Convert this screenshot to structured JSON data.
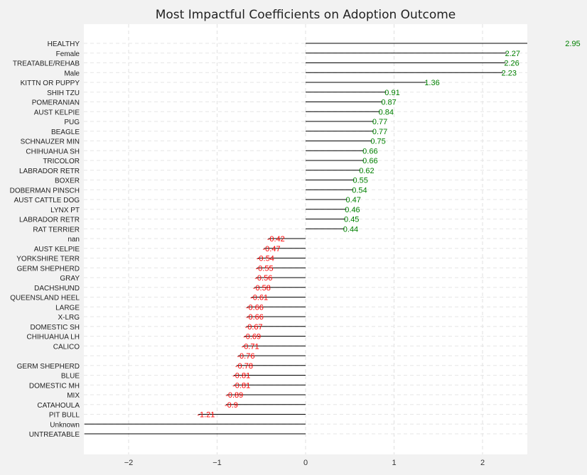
{
  "chart_data": {
    "type": "bar",
    "orientation": "horizontal",
    "title": "Most Impactful Coefficients on Adoption Outcome",
    "xlabel": "",
    "ylabel": "",
    "xlim": [
      -2.5,
      2.5
    ],
    "x_ticks": [
      -2,
      -1,
      0,
      1,
      2
    ],
    "x_tick_labels": [
      "−2",
      "−1",
      "0",
      "1",
      "2"
    ],
    "grid": true,
    "positive_color": "#008000",
    "negative_color": "#ff0000",
    "line_color": "#000000",
    "background_color": "#ffffff",
    "categories": [
      "HEALTHY",
      "Female",
      "TREATABLE/REHAB",
      "Male",
      "KITTN OR PUPPY",
      "SHIH TZU",
      "POMERANIAN",
      "AUST KELPIE",
      "PUG",
      "BEAGLE",
      "SCHNAUZER MIN",
      "CHIHUAHUA SH",
      "TRICOLOR",
      "LABRADOR RETR",
      "BOXER",
      "DOBERMAN PINSCH",
      "AUST CATTLE DOG",
      "LYNX PT",
      "LABRADOR RETR",
      "RAT TERRIER",
      "nan",
      "AUST KELPIE",
      "YORKSHIRE TERR",
      "GERM SHEPHERD",
      "GRAY",
      "DACHSHUND",
      "QUEENSLAND HEEL",
      "LARGE",
      "X-LRG",
      "DOMESTIC SH",
      "CHIHUAHUA LH",
      "CALICO",
      "",
      "GERM SHEPHERD",
      "BLUE",
      "DOMESTIC MH",
      "MIX",
      "CATAHOULA",
      "PIT BULL",
      "Unknown",
      "UNTREATABLE"
    ],
    "values": [
      2.95,
      2.27,
      2.26,
      2.23,
      1.36,
      0.91,
      0.87,
      0.84,
      0.77,
      0.77,
      0.75,
      0.66,
      0.66,
      0.62,
      0.55,
      0.54,
      0.47,
      0.46,
      0.45,
      0.44,
      -0.42,
      -0.47,
      -0.54,
      -0.55,
      -0.56,
      -0.58,
      -0.61,
      -0.66,
      -0.66,
      -0.67,
      -0.69,
      -0.71,
      -0.76,
      -0.78,
      -0.81,
      -0.81,
      -0.89,
      -0.9,
      -1.21,
      -2.5,
      -2.5
    ],
    "value_labels": [
      "2.95",
      "2.27",
      "2.26",
      "2.23",
      "1.36",
      "0.91",
      "0.87",
      "0.84",
      "0.77",
      "0.77",
      "0.75",
      "0.66",
      "0.66",
      "0.62",
      "0.55",
      "0.54",
      "0.47",
      "0.46",
      "0.45",
      "0.44",
      "-0.42",
      "-0.47",
      "-0.54",
      "-0.55",
      "-0.56",
      "-0.58",
      "-0.61",
      "-0.66",
      "-0.66",
      "-0.67",
      "-0.69",
      "-0.71",
      "-0.76",
      "-0.78",
      "-0.81",
      "-0.81",
      "-0.89",
      "-0.9",
      "-1.21",
      "",
      ""
    ]
  }
}
